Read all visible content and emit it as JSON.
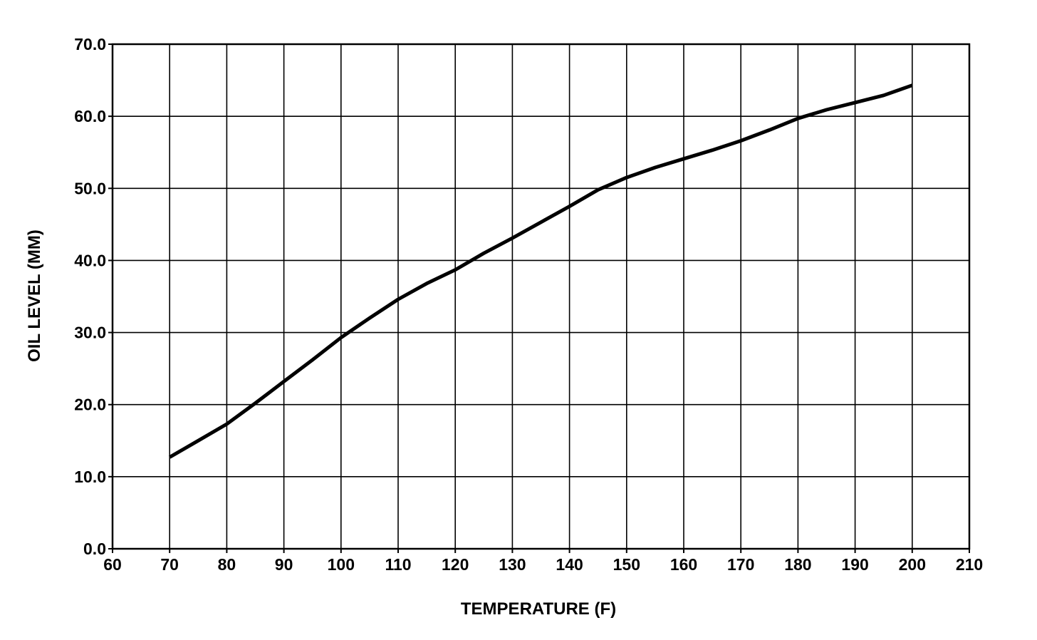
{
  "chart_data": {
    "type": "line",
    "title": "",
    "xlabel": "TEMPERATURE  (F)",
    "ylabel": "OIL LEVEL (MM)",
    "xlim": [
      60,
      210
    ],
    "ylim": [
      0,
      70
    ],
    "x_ticks": [
      "60",
      "70",
      "80",
      "90",
      "100",
      "110",
      "120",
      "130",
      "140",
      "150",
      "160",
      "170",
      "180",
      "190",
      "200",
      "210"
    ],
    "y_ticks": [
      "0.0",
      "10.0",
      "20.0",
      "30.0",
      "40.0",
      "50.0",
      "60.0",
      "70.0"
    ],
    "grid": true,
    "line_color": "#000000",
    "series": [
      {
        "x": [
          70,
          75,
          80,
          85,
          90,
          95,
          100,
          105,
          110,
          115,
          120,
          125,
          130,
          135,
          140,
          145,
          150,
          155,
          160,
          165,
          170,
          175,
          180,
          185,
          190,
          195,
          200
        ],
        "values": [
          12.7,
          15.0,
          17.3,
          20.2,
          23.2,
          26.2,
          29.3,
          32.0,
          34.6,
          36.8,
          38.7,
          41.0,
          43.1,
          45.3,
          47.5,
          49.8,
          51.5,
          52.9,
          54.1,
          55.3,
          56.6,
          58.1,
          59.7,
          60.9,
          61.9,
          62.9,
          64.3
        ]
      }
    ]
  }
}
